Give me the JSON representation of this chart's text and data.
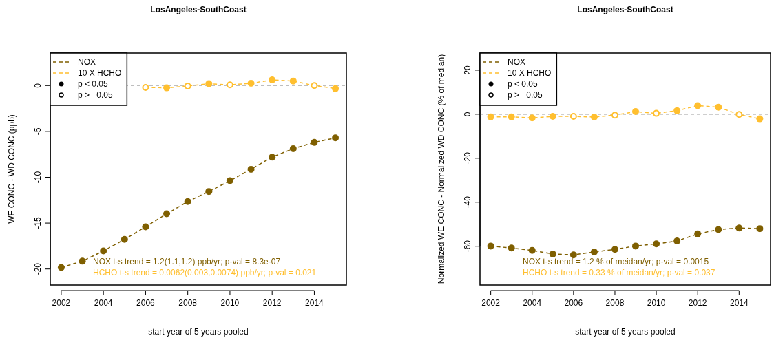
{
  "chart_data": [
    {
      "type": "scatter",
      "title": "LosAngeles-SouthCoast",
      "xlabel": "start year of 5 years pooled",
      "ylabel": "WE CONC - WD CONC (ppb)",
      "xlim": [
        2001.48,
        2015.52
      ],
      "ylim": [
        -21.75,
        3.55
      ],
      "xticks": [
        2002,
        2004,
        2006,
        2008,
        2010,
        2012,
        2014
      ],
      "yticks": [
        0,
        -5,
        -10,
        -15,
        -20
      ],
      "grid": false,
      "legend": "top left",
      "ref_lines": [
        {
          "axis": "y",
          "value": 0,
          "color": "#bebebe",
          "line_style": "dashed"
        }
      ],
      "annotations": [
        "NOX t-s trend = 1.2(1.1,1.2) ppb/yr; p-val = 8.3e-07",
        "HCHO t-s trend = 0.0062(0.003,0.0074) ppb/yr; p-val = 0.021",
        "p < 0.05",
        "p >= 0.05"
      ],
      "series": [
        {
          "name": "NOX",
          "type": "line",
          "line_style": "dashed",
          "marker": "none",
          "color": "#7f5f00",
          "x": [
            2002,
            2003,
            2004,
            2005,
            2006,
            2007,
            2008,
            2009,
            2010,
            2011,
            2012,
            2013,
            2014,
            2015
          ],
          "values": [
            -19.83,
            -19.15,
            -18.03,
            -16.78,
            -15.4,
            -13.98,
            -12.65,
            -11.55,
            -10.38,
            -9.13,
            -7.8,
            -6.88,
            -6.2,
            -5.7
          ]
        },
        {
          "name": "10 X HCHO",
          "type": "line",
          "line_style": "dashed",
          "marker": "none",
          "color": "#ffbf2f",
          "x": [
            2006,
            2007,
            2008,
            2009,
            2010,
            2011,
            2012,
            2013,
            2014,
            2015
          ],
          "values": [
            -0.2,
            -0.25,
            -0.05,
            0.2,
            0.08,
            0.25,
            0.62,
            0.5,
            0,
            -0.33
          ]
        },
        {
          "marker": "circle",
          "color": "#7f5f00",
          "x": [
            2002,
            2003,
            2004,
            2005,
            2006,
            2007,
            2008,
            2009,
            2010,
            2011,
            2012,
            2013,
            2014,
            2015
          ],
          "values": [
            -19.83,
            -19.15,
            -18.03,
            -16.78,
            -15.4,
            -13.98,
            -12.65,
            -11.55,
            -10.38,
            -9.13,
            -7.8,
            -6.88,
            -6.2,
            -5.7
          ]
        },
        {
          "marker": "circle",
          "color": "#ffbf2f",
          "x": [
            2007,
            2009,
            2011,
            2012,
            2013,
            2015
          ],
          "values": [
            -0.25,
            0.2,
            0.25,
            0.62,
            0.5,
            -0.33
          ]
        },
        {
          "marker": "circle-open",
          "color": "#ffbf2f",
          "x": [
            2006,
            2008,
            2010,
            2014
          ],
          "values": [
            -0.2,
            -0.05,
            0.08,
            0
          ]
        }
      ]
    },
    {
      "type": "scatter",
      "title": "LosAngeles-SouthCoast",
      "xlabel": "start year of 5 years pooled",
      "ylabel": "Normalized WE CONC - Normalized WD CONC (% of median)",
      "xlim": [
        2001.48,
        2015.52
      ],
      "ylim": [
        -77.6,
        27.8
      ],
      "xticks": [
        2002,
        2004,
        2006,
        2008,
        2010,
        2012,
        2014
      ],
      "yticks": [
        20,
        0,
        -20,
        -40,
        -60
      ],
      "grid": false,
      "legend": "top left",
      "ref_lines": [
        {
          "axis": "y",
          "value": 0,
          "color": "#bebebe",
          "line_style": "dashed"
        }
      ],
      "annotations": [
        "NOX t-s trend = 1.2 % of meidan/yr; p-val = 0.0015",
        "HCHO t-s trend = 0.33 % of meidan/yr; p-val = 0.037",
        "p < 0.05",
        "p >= 0.05"
      ],
      "series": [
        {
          "name": "NOX",
          "type": "line",
          "line_style": "dashed",
          "marker": "none",
          "color": "#7f5f00",
          "x": [
            2002,
            2003,
            2004,
            2005,
            2006,
            2007,
            2008,
            2009,
            2010,
            2011,
            2012,
            2013,
            2014,
            2015
          ],
          "values": [
            -59.9,
            -60.8,
            -61.9,
            -63.5,
            -63.9,
            -62.6,
            -61.4,
            -59.9,
            -58.9,
            -57.6,
            -54.4,
            -52.4,
            -51.7,
            -52.0
          ]
        },
        {
          "name": "10 X HCHO",
          "type": "line",
          "line_style": "dashed",
          "marker": "none",
          "color": "#ffbf2f",
          "x": [
            2002,
            2003,
            2004,
            2005,
            2006,
            2007,
            2008,
            2009,
            2010,
            2011,
            2012,
            2013,
            2014,
            2015
          ],
          "values": [
            -1.2,
            -1.2,
            -1.7,
            -1.0,
            -1.0,
            -1.3,
            -0.4,
            1.2,
            0.4,
            1.6,
            3.9,
            3.2,
            -0.1,
            -2.1
          ]
        },
        {
          "marker": "circle",
          "color": "#7f5f00",
          "x": [
            2002,
            2003,
            2004,
            2005,
            2006,
            2007,
            2008,
            2009,
            2010,
            2011,
            2012,
            2013,
            2014,
            2015
          ],
          "values": [
            -59.9,
            -60.8,
            -61.9,
            -63.5,
            -63.9,
            -62.6,
            -61.4,
            -59.9,
            -58.9,
            -57.6,
            -54.4,
            -52.4,
            -51.7,
            -52.0
          ]
        },
        {
          "marker": "circle",
          "color": "#ffbf2f",
          "x": [
            2002,
            2003,
            2004,
            2005,
            2007,
            2009,
            2011,
            2012,
            2013,
            2015
          ],
          "values": [
            -1.2,
            -1.2,
            -1.7,
            -1.0,
            -1.3,
            1.2,
            1.6,
            3.9,
            3.2,
            -2.1
          ]
        },
        {
          "marker": "circle-open",
          "color": "#ffbf2f",
          "x": [
            2006,
            2008,
            2010,
            2014
          ],
          "values": [
            -1.0,
            -0.4,
            0.4,
            -0.1
          ]
        }
      ]
    }
  ]
}
